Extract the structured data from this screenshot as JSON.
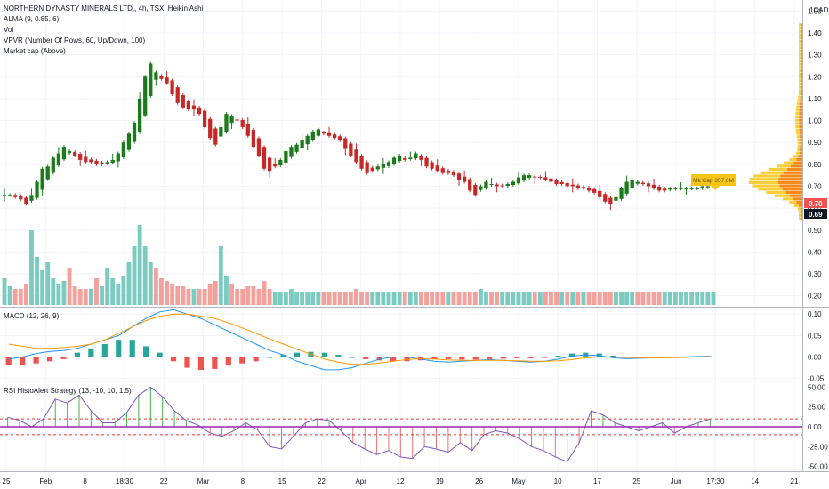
{
  "header": {
    "title": "NORTHERN DYNASTY MINERALS LTD., 4h, TSX, Heikin Ashi",
    "indicators": [
      "ALMA (9, 0.85, 6)",
      "Vol",
      "VPVR (Number Of Rows, 60, Up/Down, 100)",
      "Market cap (Above)"
    ]
  },
  "currency_label": "1CAD",
  "colors": {
    "up": "#26a69a",
    "up_candle": "#1b7a1b",
    "down": "#ef5350",
    "down_candle": "#c62828",
    "vol_up": "#7ccbc1",
    "vol_down": "#f3a19d",
    "macd_line": "#2196f3",
    "signal_line": "#ff9800",
    "rsi_line": "#7e57c2",
    "vpvr_up": "#f5c518",
    "vpvr_down": "#f57c00",
    "rsi_hline": "#9c27b0",
    "band_dash": "#e53935"
  },
  "price_tags": {
    "current": "0.70",
    "last": "0.69",
    "market_cap": "Mk Cap 357.6M"
  },
  "macd_panel": {
    "label": "MACD (12, 26, 9)"
  },
  "rsi_panel": {
    "label": "RSI HistoAlert Strategy (13, -10, 10, 1.5)"
  },
  "x_axis": {
    "labels": [
      "25",
      "Feb",
      "8",
      "18:30",
      "22",
      "Mar",
      "8",
      "15",
      "22",
      "Apr",
      "12",
      "19",
      "26",
      "May",
      "10",
      "17",
      "25",
      "Jun",
      "17:30",
      "14",
      "21"
    ]
  },
  "chart_data": [
    {
      "type": "candlestick",
      "title": "NORTHERN DYNASTY MINERALS LTD., 4h, TSX, Heikin Ashi",
      "y_ticks": [
        "1.50",
        "1.40",
        "1.30",
        "1.20",
        "1.10",
        "1.00",
        "0.90",
        "0.80",
        "0.70",
        "0.60",
        "0.50",
        "0.40",
        "0.30",
        "0.20"
      ],
      "ylim": [
        0.15,
        1.55
      ],
      "close": [
        0.66,
        0.66,
        0.65,
        0.64,
        0.62,
        0.66,
        0.72,
        0.78,
        0.79,
        0.83,
        0.85,
        0.88,
        0.86,
        0.84,
        0.82,
        0.81,
        0.81,
        0.8,
        0.8,
        0.81,
        0.82,
        0.85,
        0.9,
        0.94,
        0.99,
        1.1,
        1.2,
        1.26,
        1.22,
        1.19,
        1.17,
        1.12,
        1.08,
        1.06,
        1.05,
        1.05,
        1.03,
        0.97,
        0.92,
        0.89,
        0.97,
        1.03,
        1.02,
        1.0,
        0.97,
        0.93,
        0.88,
        0.84,
        0.78,
        0.77,
        0.79,
        0.82,
        0.86,
        0.88,
        0.89,
        0.91,
        0.93,
        0.95,
        0.96,
        0.94,
        0.93,
        0.92,
        0.91,
        0.87,
        0.84,
        0.81,
        0.78,
        0.76,
        0.77,
        0.79,
        0.8,
        0.81,
        0.83,
        0.84,
        0.82,
        0.83,
        0.85,
        0.82,
        0.79,
        0.78,
        0.77,
        0.76,
        0.76,
        0.75,
        0.73,
        0.72,
        0.68,
        0.66,
        0.7,
        0.72,
        0.71,
        0.7,
        0.7,
        0.71,
        0.72,
        0.74,
        0.75,
        0.75,
        0.74,
        0.74,
        0.73,
        0.72,
        0.71,
        0.71,
        0.7,
        0.7,
        0.69,
        0.69,
        0.68,
        0.67,
        0.65,
        0.63,
        0.62,
        0.65,
        0.69,
        0.72,
        0.73,
        0.72,
        0.71,
        0.7,
        0.69,
        0.68,
        0.68,
        0.69,
        0.69,
        0.69,
        0.69,
        0.69,
        0.69,
        0.7,
        0.7,
        0.71
      ]
    },
    {
      "type": "bar",
      "title": "Vol",
      "values": [
        10,
        7,
        6,
        6,
        8,
        28,
        18,
        13,
        16,
        10,
        8,
        9,
        14,
        7,
        6,
        6,
        6,
        10,
        7,
        14,
        10,
        8,
        11,
        16,
        22,
        30,
        22,
        16,
        14,
        10,
        9,
        8,
        7,
        7,
        6,
        6,
        6,
        6,
        8,
        9,
        22,
        11,
        8,
        6,
        6,
        7,
        7,
        6,
        9,
        6,
        5,
        5,
        5,
        6,
        5,
        5,
        5,
        5,
        5,
        5,
        5,
        5,
        5,
        5,
        5,
        6,
        5,
        5,
        5,
        5,
        5,
        5,
        5,
        5,
        5,
        5,
        5,
        5,
        5,
        5,
        5,
        5,
        5,
        5,
        5,
        5,
        5,
        5,
        6,
        5,
        5,
        5,
        5,
        5,
        5,
        5,
        5,
        5,
        5,
        5,
        5,
        5,
        5,
        5,
        5,
        5,
        5,
        5,
        5,
        5,
        5,
        5,
        5,
        5,
        5,
        5,
        5,
        5,
        5,
        5,
        5,
        5,
        5,
        5,
        5,
        5,
        5,
        5,
        5,
        5,
        5,
        5
      ]
    },
    {
      "type": "histogram",
      "title": "MACD (12, 26, 9)",
      "y_ticks": [
        "0.10",
        "0.05",
        "0.00",
        "-0.05"
      ],
      "ylim": [
        -0.055,
        0.115
      ],
      "macd": [
        -0.005,
        0.0,
        0.008,
        0.013,
        0.015,
        0.02,
        0.03,
        0.04,
        0.05,
        0.07,
        0.09,
        0.105,
        0.11,
        0.1,
        0.09,
        0.075,
        0.06,
        0.045,
        0.03,
        0.015,
        0.005,
        -0.01,
        -0.02,
        -0.03,
        -0.03,
        -0.025,
        -0.015,
        -0.005,
        0.0,
        0.0,
        -0.005,
        -0.01,
        -0.012,
        -0.01,
        -0.008,
        -0.006,
        -0.008,
        -0.01,
        -0.012,
        -0.01,
        -0.005,
        0.002,
        0.005,
        0.003,
        -0.002,
        -0.004,
        -0.003,
        -0.002,
        -0.001,
        0.0,
        0.001,
        0.002
      ],
      "signal": [
        0.03,
        0.025,
        0.02,
        0.02,
        0.022,
        0.025,
        0.03,
        0.04,
        0.055,
        0.07,
        0.085,
        0.095,
        0.1,
        0.1,
        0.095,
        0.09,
        0.08,
        0.068,
        0.055,
        0.042,
        0.03,
        0.018,
        0.007,
        -0.005,
        -0.012,
        -0.017,
        -0.017,
        -0.014,
        -0.01,
        -0.006,
        -0.004,
        -0.005,
        -0.007,
        -0.008,
        -0.008,
        -0.008,
        -0.008,
        -0.009,
        -0.01,
        -0.01,
        -0.009,
        -0.006,
        -0.002,
        0.0,
        0.0,
        -0.001,
        -0.002,
        -0.002,
        -0.002,
        -0.001,
        0.0,
        0.001
      ],
      "hist": [
        -0.02,
        -0.02,
        -0.015,
        -0.01,
        -0.005,
        0.01,
        0.02,
        0.03,
        0.04,
        0.04,
        0.025,
        0.01,
        -0.01,
        -0.025,
        -0.03,
        -0.028,
        -0.02,
        -0.015,
        -0.01,
        0.0,
        0.005,
        0.01,
        0.012,
        0.01,
        0.005,
        0.0,
        -0.005,
        -0.008,
        -0.01,
        -0.01,
        -0.008,
        -0.005,
        -0.005,
        -0.006,
        -0.006,
        -0.005,
        -0.004,
        -0.003,
        -0.003,
        -0.002,
        0.003,
        0.008,
        0.01,
        0.008,
        0.003,
        -0.002,
        -0.003,
        -0.002,
        -0.001,
        0.0,
        0.001,
        0.002
      ]
    },
    {
      "type": "line",
      "title": "RSI HistoAlert Strategy (13, -10, 10, 1.5)",
      "y_ticks": [
        "50.00",
        "25.00",
        "0.00",
        "-25.00",
        "-50.00"
      ],
      "ylim": [
        -56,
        56
      ],
      "hlines": [
        10,
        0,
        -10
      ],
      "values": [
        12,
        8,
        0,
        10,
        35,
        30,
        40,
        20,
        5,
        5,
        18,
        40,
        50,
        38,
        20,
        8,
        2,
        -8,
        -12,
        -5,
        5,
        -4,
        -25,
        -28,
        -12,
        5,
        10,
        8,
        -5,
        -20,
        -28,
        -35,
        -30,
        -38,
        -40,
        -25,
        -28,
        -32,
        -20,
        -30,
        -10,
        -5,
        -8,
        -15,
        -25,
        -30,
        -38,
        -44,
        -20,
        20,
        15,
        5,
        0,
        -5,
        0,
        5,
        -8,
        0,
        5,
        10
      ]
    }
  ]
}
